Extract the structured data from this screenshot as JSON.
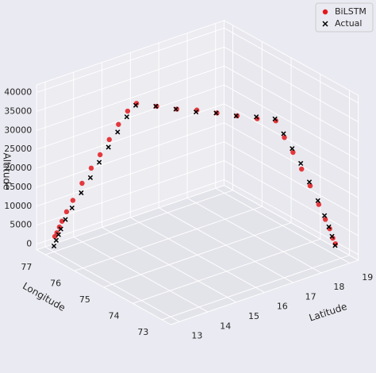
{
  "chart_data": {
    "type": "scatter3d",
    "xlabel": "Latitude",
    "ylabel": "Longitude",
    "zlabel": "Altitude",
    "xlim": [
      12.7,
      19.3
    ],
    "ylim": [
      72.7,
      77.3
    ],
    "zlim": [
      -1500,
      42000
    ],
    "xticks": [
      13,
      14,
      15,
      16,
      17,
      18,
      19
    ],
    "yticks": [
      73,
      74,
      75,
      76,
      77
    ],
    "zticks": [
      0,
      5000,
      10000,
      15000,
      20000,
      25000,
      30000,
      35000,
      40000
    ],
    "grid": true,
    "legend": "upper right",
    "series": [
      {
        "name": "BiLSTM",
        "color": "#e3191c",
        "marker": "o",
        "x": [
          13.02,
          13.06,
          13.12,
          13.18,
          13.28,
          13.42,
          13.62,
          13.82,
          14.02,
          14.22,
          14.42,
          14.62,
          14.82,
          15.22,
          15.62,
          16.02,
          16.42,
          16.82,
          17.22,
          17.62,
          17.82,
          18.02,
          18.22,
          18.42,
          18.62,
          18.77,
          18.87,
          18.94,
          19.0
        ],
        "y": [
          76.99,
          76.96,
          76.93,
          76.9,
          76.84,
          76.76,
          76.64,
          76.52,
          76.41,
          76.29,
          76.17,
          76.05,
          75.94,
          75.64,
          75.34,
          75.04,
          74.74,
          74.44,
          74.14,
          73.89,
          73.79,
          73.69,
          73.59,
          73.49,
          73.39,
          73.31,
          73.26,
          73.22,
          73.19
        ],
        "z": [
          2500,
          3500,
          5000,
          6500,
          9000,
          12000,
          16500,
          20500,
          24000,
          28000,
          32000,
          35500,
          37500,
          37000,
          36500,
          36500,
          36000,
          35500,
          35000,
          34500,
          30000,
          26000,
          21500,
          17000,
          12000,
          8000,
          5500,
          3000,
          1500
        ]
      },
      {
        "name": "Actual",
        "color": "#000000",
        "marker": "x",
        "x": [
          13.0,
          13.05,
          13.1,
          13.15,
          13.25,
          13.4,
          13.6,
          13.8,
          14.0,
          14.2,
          14.4,
          14.6,
          14.8,
          15.2,
          15.6,
          16.0,
          16.4,
          16.8,
          17.2,
          17.6,
          17.8,
          18.0,
          18.2,
          18.4,
          18.6,
          18.75,
          18.85,
          18.92,
          19.0
        ],
        "y": [
          77.0,
          76.97,
          76.94,
          76.91,
          76.85,
          76.77,
          76.65,
          76.53,
          76.42,
          76.3,
          76.18,
          76.06,
          75.95,
          75.65,
          75.35,
          75.05,
          74.75,
          74.45,
          74.15,
          73.9,
          73.8,
          73.7,
          73.6,
          73.5,
          73.4,
          73.32,
          73.27,
          73.23,
          73.2
        ],
        "z": [
          0,
          1500,
          3000,
          4500,
          7000,
          10000,
          14000,
          18000,
          22000,
          26000,
          30000,
          34000,
          37000,
          37000,
          36500,
          36000,
          36000,
          35500,
          35500,
          35000,
          31000,
          27000,
          23000,
          18000,
          13000,
          9000,
          6000,
          3500,
          1000
        ]
      }
    ]
  }
}
